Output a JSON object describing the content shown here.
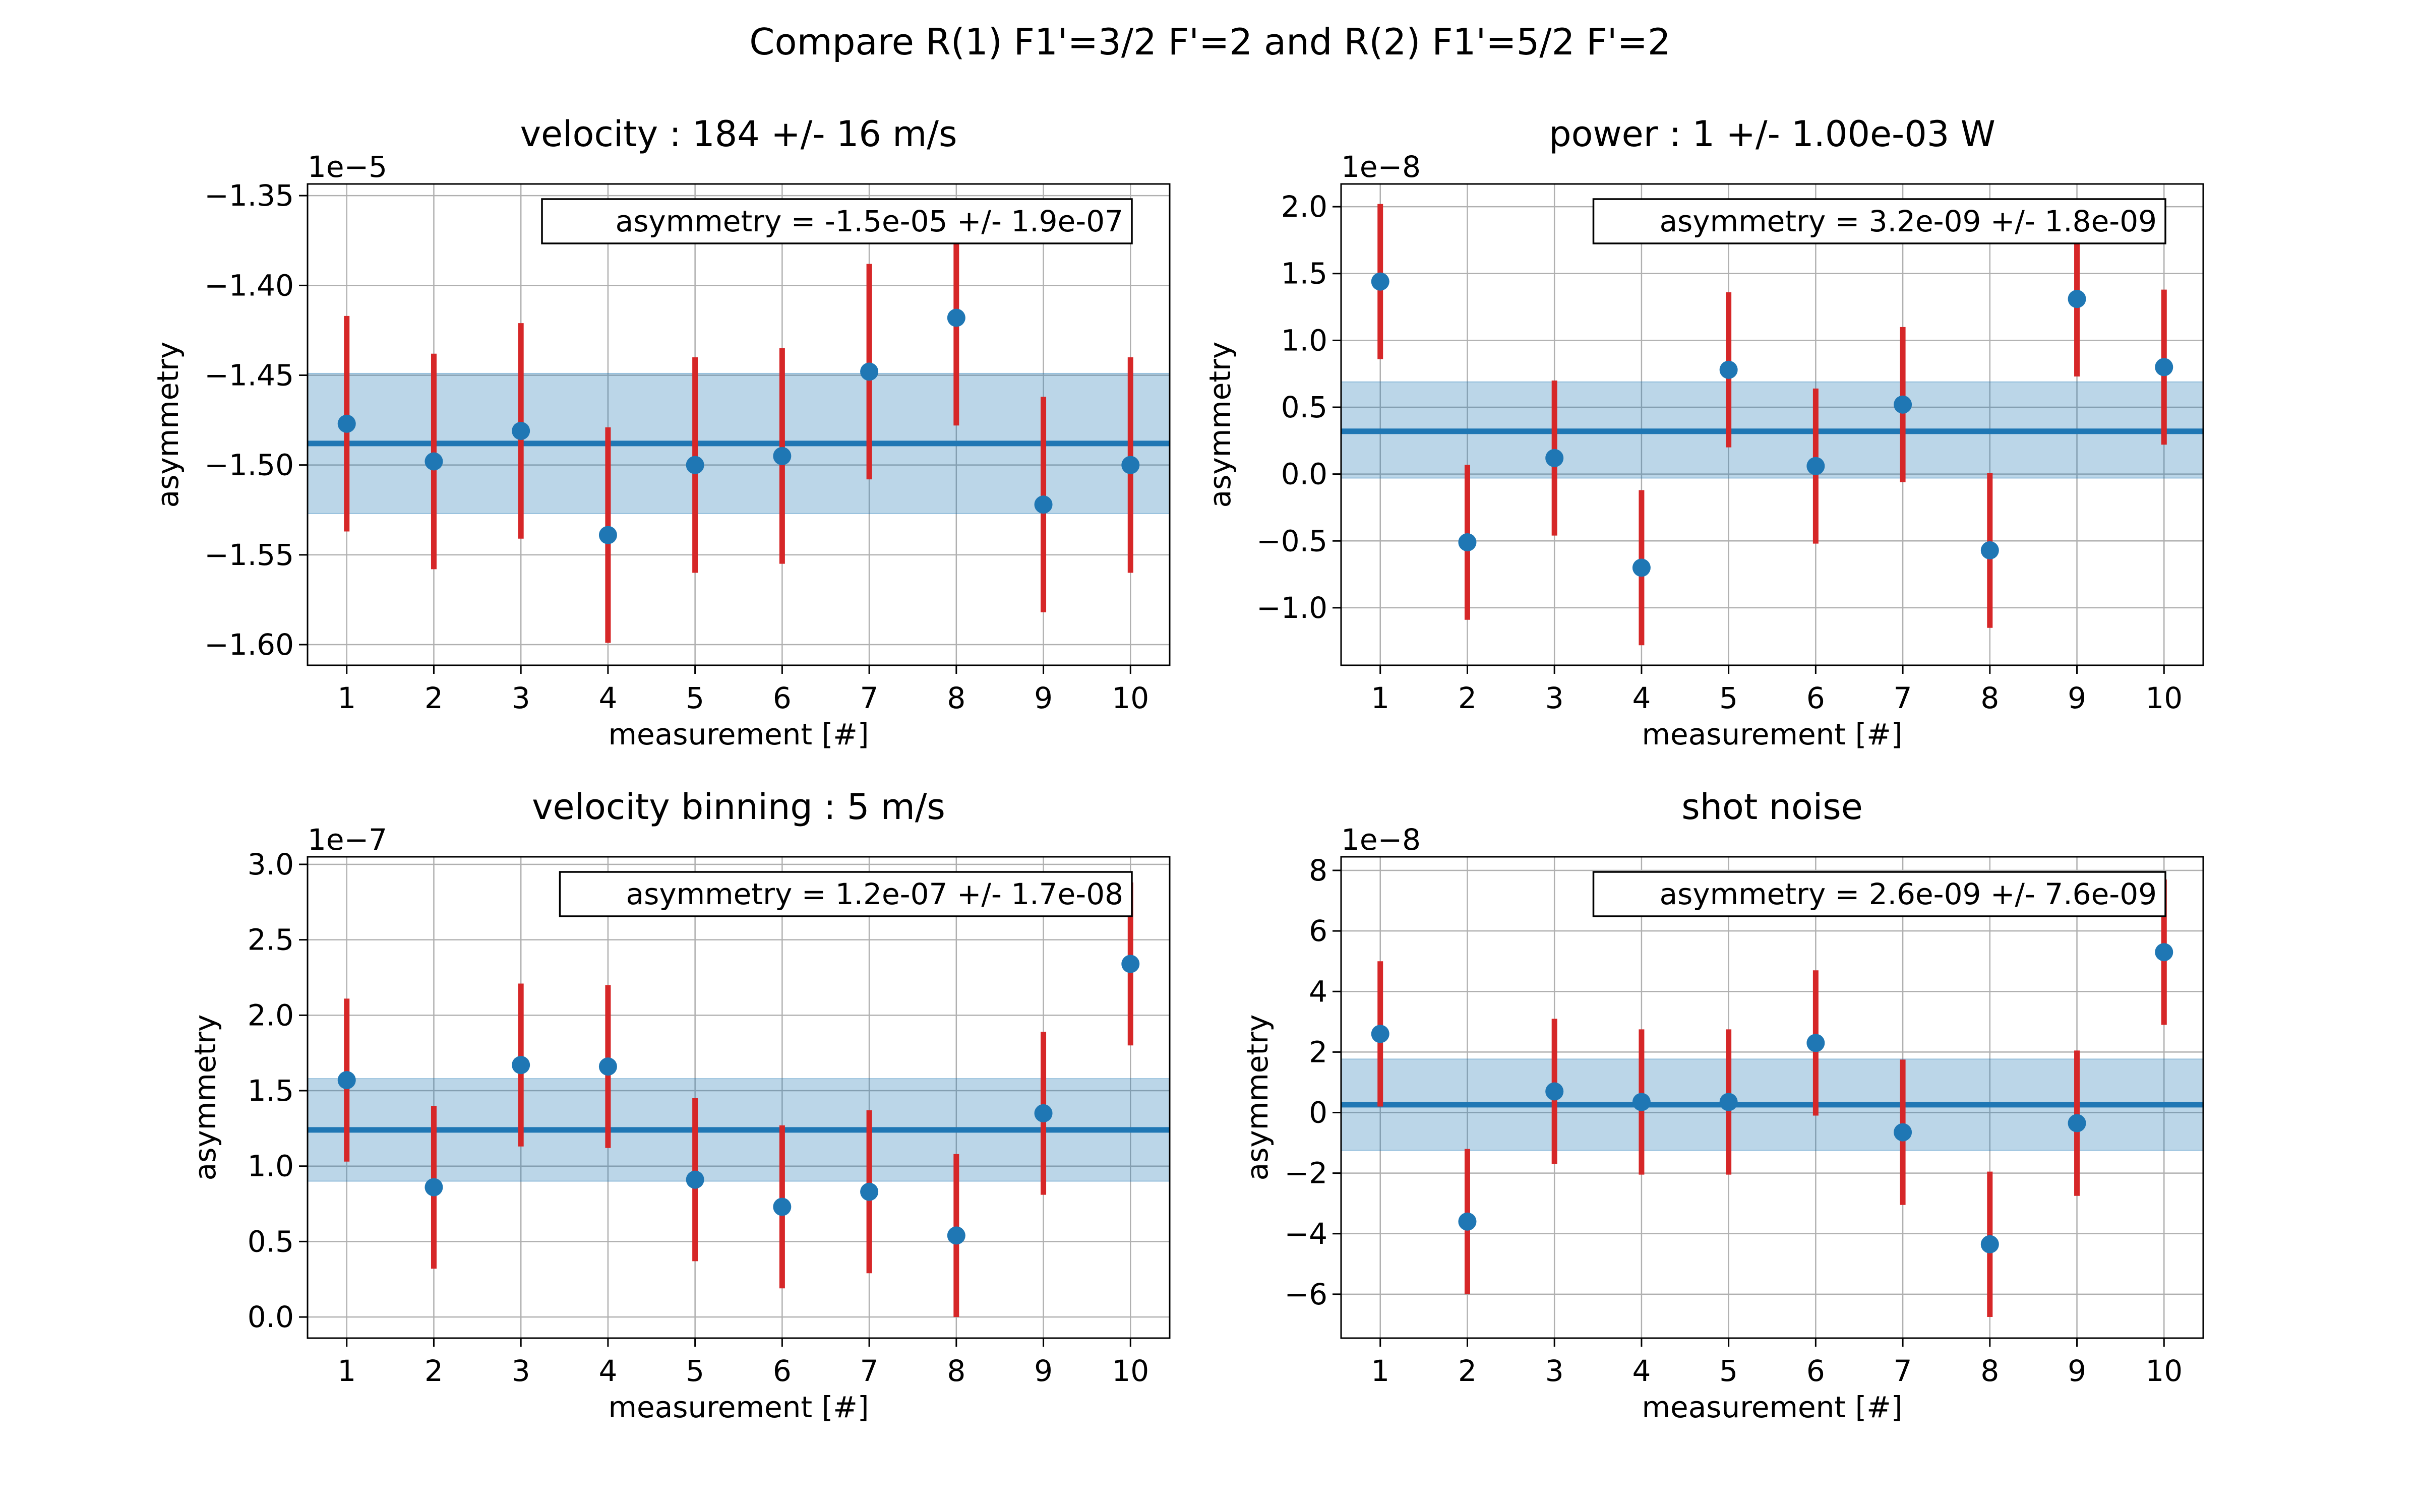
{
  "figure": {
    "suptitle": "Compare R(1) F1'=3/2 F'=2 and R(2) F1'=5/2 F'=2"
  },
  "colors": {
    "marker": "#1f77b4",
    "errorbar": "#d62728",
    "band": "#1f77b4",
    "grid": "#b0b0b0"
  },
  "chart_data": [
    {
      "type": "scatter",
      "title": "velocity : 184 +/- 16 m/s",
      "xlabel": "measurement [#]",
      "ylabel": "asymmetry",
      "offset_label": "1e−5",
      "x": [
        1,
        2,
        3,
        4,
        5,
        6,
        7,
        8,
        9,
        10
      ],
      "y": [
        -1.477,
        -1.498,
        -1.481,
        -1.539,
        -1.5,
        -1.495,
        -1.448,
        -1.418,
        -1.522,
        -1.5
      ],
      "yerr": [
        0.06,
        0.06,
        0.06,
        0.06,
        0.06,
        0.06,
        0.06,
        0.06,
        0.06,
        0.06
      ],
      "mean": -1.488,
      "band": [
        -1.527,
        -1.449
      ],
      "annotation": "asymmetry = -1.5e-05 +/- 1.9e-07",
      "xlim": [
        0.55,
        10.45
      ],
      "ylim": [
        -1.6115,
        -1.3435
      ],
      "yticks": [
        -1.6,
        -1.55,
        -1.5,
        -1.45,
        -1.4,
        -1.35
      ],
      "ytick_labels": [
        "−1.60",
        "−1.55",
        "−1.50",
        "−1.45",
        "−1.40",
        "−1.35"
      ],
      "xticks": [
        1,
        2,
        3,
        4,
        5,
        6,
        7,
        8,
        9,
        10
      ],
      "xtick_labels": [
        "1",
        "2",
        "3",
        "4",
        "5",
        "6",
        "7",
        "8",
        "9",
        "10"
      ],
      "grid": true
    },
    {
      "type": "scatter",
      "title": "power : 1 +/- 1.00e-03 W",
      "xlabel": "measurement [#]",
      "ylabel": "asymmetry",
      "offset_label": "1e−8",
      "x": [
        1,
        2,
        3,
        4,
        5,
        6,
        7,
        8,
        9,
        10
      ],
      "y": [
        1.44,
        -0.51,
        0.12,
        -0.7,
        0.78,
        0.06,
        0.52,
        -0.57,
        1.31,
        0.8
      ],
      "yerr": [
        0.58,
        0.58,
        0.58,
        0.58,
        0.58,
        0.58,
        0.58,
        0.58,
        0.58,
        0.58
      ],
      "mean": 0.32,
      "band": [
        -0.03,
        0.69
      ],
      "annotation": "asymmetry = 3.2e-09 +/- 1.8e-09",
      "xlim": [
        0.55,
        10.45
      ],
      "ylim": [
        -1.43,
        2.17
      ],
      "yticks": [
        -1.0,
        -0.5,
        0.0,
        0.5,
        1.0,
        1.5,
        2.0
      ],
      "ytick_labels": [
        "−1.0",
        "−0.5",
        "0.0",
        "0.5",
        "1.0",
        "1.5",
        "2.0"
      ],
      "xticks": [
        1,
        2,
        3,
        4,
        5,
        6,
        7,
        8,
        9,
        10
      ],
      "xtick_labels": [
        "1",
        "2",
        "3",
        "4",
        "5",
        "6",
        "7",
        "8",
        "9",
        "10"
      ],
      "grid": true
    },
    {
      "type": "scatter",
      "title": "velocity binning : 5 m/s",
      "xlabel": "measurement [#]",
      "ylabel": "asymmetry",
      "offset_label": "1e−7",
      "x": [
        1,
        2,
        3,
        4,
        5,
        6,
        7,
        8,
        9,
        10
      ],
      "y": [
        1.57,
        0.86,
        1.67,
        1.66,
        0.91,
        0.73,
        0.83,
        0.54,
        1.35,
        2.34
      ],
      "yerr": [
        0.54,
        0.54,
        0.54,
        0.54,
        0.54,
        0.54,
        0.54,
        0.54,
        0.54,
        0.54
      ],
      "mean": 1.24,
      "band": [
        0.9,
        1.58
      ],
      "annotation": "asymmetry = 1.2e-07 +/- 1.7e-08",
      "xlim": [
        0.55,
        10.45
      ],
      "ylim": [
        -0.14,
        3.05
      ],
      "yticks": [
        0.0,
        0.5,
        1.0,
        1.5,
        2.0,
        2.5,
        3.0
      ],
      "ytick_labels": [
        "0.0",
        "0.5",
        "1.0",
        "1.5",
        "2.0",
        "2.5",
        "3.0"
      ],
      "xticks": [
        1,
        2,
        3,
        4,
        5,
        6,
        7,
        8,
        9,
        10
      ],
      "xtick_labels": [
        "1",
        "2",
        "3",
        "4",
        "5",
        "6",
        "7",
        "8",
        "9",
        "10"
      ],
      "grid": true
    },
    {
      "type": "scatter",
      "title": "shot noise",
      "xlabel": "measurement [#]",
      "ylabel": "asymmetry",
      "offset_label": "1e−8",
      "x": [
        1,
        2,
        3,
        4,
        5,
        6,
        7,
        8,
        9,
        10
      ],
      "y": [
        2.6,
        -3.6,
        0.7,
        0.35,
        0.35,
        2.3,
        -0.65,
        -4.35,
        -0.35,
        5.3
      ],
      "yerr": [
        2.4,
        2.4,
        2.4,
        2.4,
        2.4,
        2.4,
        2.4,
        2.4,
        2.4,
        2.4
      ],
      "mean": 0.26,
      "band": [
        -1.25,
        1.77
      ],
      "annotation": "asymmetry = 2.6e-09 +/- 7.6e-09",
      "xlim": [
        0.55,
        10.45
      ],
      "ylim": [
        -7.45,
        8.45
      ],
      "yticks": [
        -6,
        -4,
        -2,
        0,
        2,
        4,
        6,
        8
      ],
      "ytick_labels": [
        "−6",
        "−4",
        "−2",
        "0",
        "2",
        "4",
        "6",
        "8"
      ],
      "xticks": [
        1,
        2,
        3,
        4,
        5,
        6,
        7,
        8,
        9,
        10
      ],
      "xtick_labels": [
        "1",
        "2",
        "3",
        "4",
        "5",
        "6",
        "7",
        "8",
        "9",
        "10"
      ],
      "grid": true
    }
  ]
}
